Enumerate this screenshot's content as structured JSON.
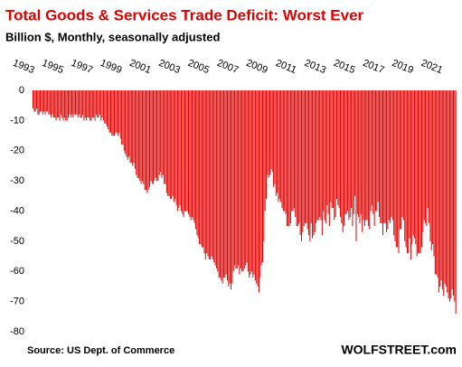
{
  "chart_data": {
    "type": "bar",
    "title": "Total Goods & Services Trade Deficit: Worst Ever",
    "subtitle": "Billion $, Monthly, seasonally adjusted",
    "source": "Source: US Dept. of Commerce",
    "brand": "WOLFSTREET.com",
    "color": "#e00000",
    "categories": [
      "1993",
      null,
      "1995",
      null,
      "1997",
      null,
      "1999",
      null,
      "2001",
      null,
      "2003",
      null,
      "2005",
      null,
      "2007",
      null,
      "2009",
      null,
      "2011",
      null,
      "2013",
      null,
      "2015",
      null,
      "2017",
      null,
      "2019",
      null,
      "2021",
      null
    ],
    "values": [
      [
        -6,
        -7,
        -7,
        -6,
        -8,
        -8,
        -7,
        -7,
        -8,
        -7,
        -8,
        -7
      ],
      [
        -7,
        -8,
        -8,
        -9,
        -8,
        -9,
        -9,
        -10,
        -9,
        -9,
        -10,
        -8
      ],
      [
        -9,
        -10,
        -9,
        -10,
        -10,
        -9,
        -8,
        -9,
        -8,
        -9,
        -8,
        -8
      ],
      [
        -8,
        -9,
        -8,
        -9,
        -9,
        -8,
        -10,
        -9,
        -10,
        -9,
        -9,
        -10
      ],
      [
        -10,
        -9,
        -9,
        -10,
        -8,
        -9,
        -9,
        -8,
        -10,
        -9,
        -10,
        -11
      ],
      [
        -11,
        -12,
        -13,
        -14,
        -14,
        -15,
        -15,
        -15,
        -14,
        -14,
        -15,
        -14
      ],
      [
        -16,
        -18,
        -18,
        -20,
        -21,
        -22,
        -23,
        -22,
        -24,
        -24,
        -25,
        -24
      ],
      [
        -26,
        -28,
        -29,
        -29,
        -30,
        -31,
        -30,
        -31,
        -33,
        -33,
        -34,
        -33
      ],
      [
        -32,
        -30,
        -31,
        -31,
        -30,
        -29,
        -30,
        -30,
        -28,
        -27,
        -29,
        -28
      ],
      [
        -31,
        -31,
        -34,
        -35,
        -35,
        -36,
        -36,
        -35,
        -37,
        -36,
        -38,
        -40
      ],
      [
        -39,
        -38,
        -40,
        -41,
        -42,
        -40,
        -40,
        -40,
        -41,
        -42,
        -43,
        -42
      ],
      [
        -43,
        -44,
        -46,
        -48,
        -49,
        -51,
        -51,
        -52,
        -52,
        -54,
        -56,
        -54
      ],
      [
        -55,
        -56,
        -56,
        -55,
        -56,
        -57,
        -58,
        -59,
        -60,
        -62,
        -62,
        -63
      ],
      [
        -64,
        -62,
        -62,
        -61,
        -63,
        -65,
        -64,
        -66,
        -64,
        -60,
        -58,
        -59
      ],
      [
        -59,
        -58,
        -61,
        -59,
        -60,
        -60,
        -59,
        -58,
        -57,
        -60,
        -62,
        -61
      ],
      [
        -60,
        -62,
        -61,
        -63,
        -64,
        -65,
        -67,
        -62,
        -58,
        -57,
        -50,
        -40
      ],
      [
        -36,
        -28,
        -29,
        -28,
        -26,
        -27,
        -32,
        -31,
        -35,
        -34,
        -37,
        -36
      ],
      [
        -37,
        -39,
        -40,
        -40,
        -41,
        -45,
        -45,
        -45,
        -44,
        -40,
        -40,
        -39
      ],
      [
        -42,
        -45,
        -45,
        -44,
        -48,
        -50,
        -47,
        -45,
        -44,
        -44,
        -46,
        -48
      ],
      [
        -50,
        -44,
        -49,
        -48,
        -47,
        -44,
        -43,
        -43,
        -42,
        -43,
        -48,
        -40
      ],
      [
        -43,
        -44,
        -38,
        -41,
        -45,
        -37,
        -39,
        -39,
        -43,
        -42,
        -36,
        -38
      ],
      [
        -39,
        -42,
        -44,
        -47,
        -45,
        -41,
        -41,
        -40,
        -43,
        -42,
        -39,
        -45
      ],
      [
        -41,
        -35,
        -50,
        -41,
        -42,
        -44,
        -41,
        -47,
        -43,
        -45,
        -43,
        -43
      ],
      [
        -45,
        -46,
        -40,
        -38,
        -41,
        -45,
        -40,
        -40,
        -37,
        -42,
        -44,
        -44
      ],
      [
        -48,
        -44,
        -44,
        -47,
        -46,
        -43,
        -44,
        -42,
        -43,
        -48,
        -50,
        -52
      ],
      [
        -52,
        -54,
        -46,
        -46,
        -42,
        -43,
        -50,
        -52,
        -54,
        -54,
        -49,
        -56
      ],
      [
        -51,
        -48,
        -49,
        -51,
        -55,
        -54,
        -54,
        -54,
        -52,
        -47,
        -43,
        -44
      ],
      [
        -45,
        -39,
        -44,
        -50,
        -53,
        -51,
        -55,
        -61,
        -61,
        -62,
        -67,
        -65
      ],
      [
        -63,
        -66,
        -68,
        -64,
        -65,
        -67,
        -69,
        -70,
        -69,
        -66,
        -68,
        -70
      ],
      [
        -74
      ]
    ],
    "ylim": [
      -80,
      0
    ],
    "yticks": [
      0,
      -10,
      -20,
      -30,
      -40,
      -50,
      -60,
      -70,
      -80
    ],
    "grid": false
  }
}
